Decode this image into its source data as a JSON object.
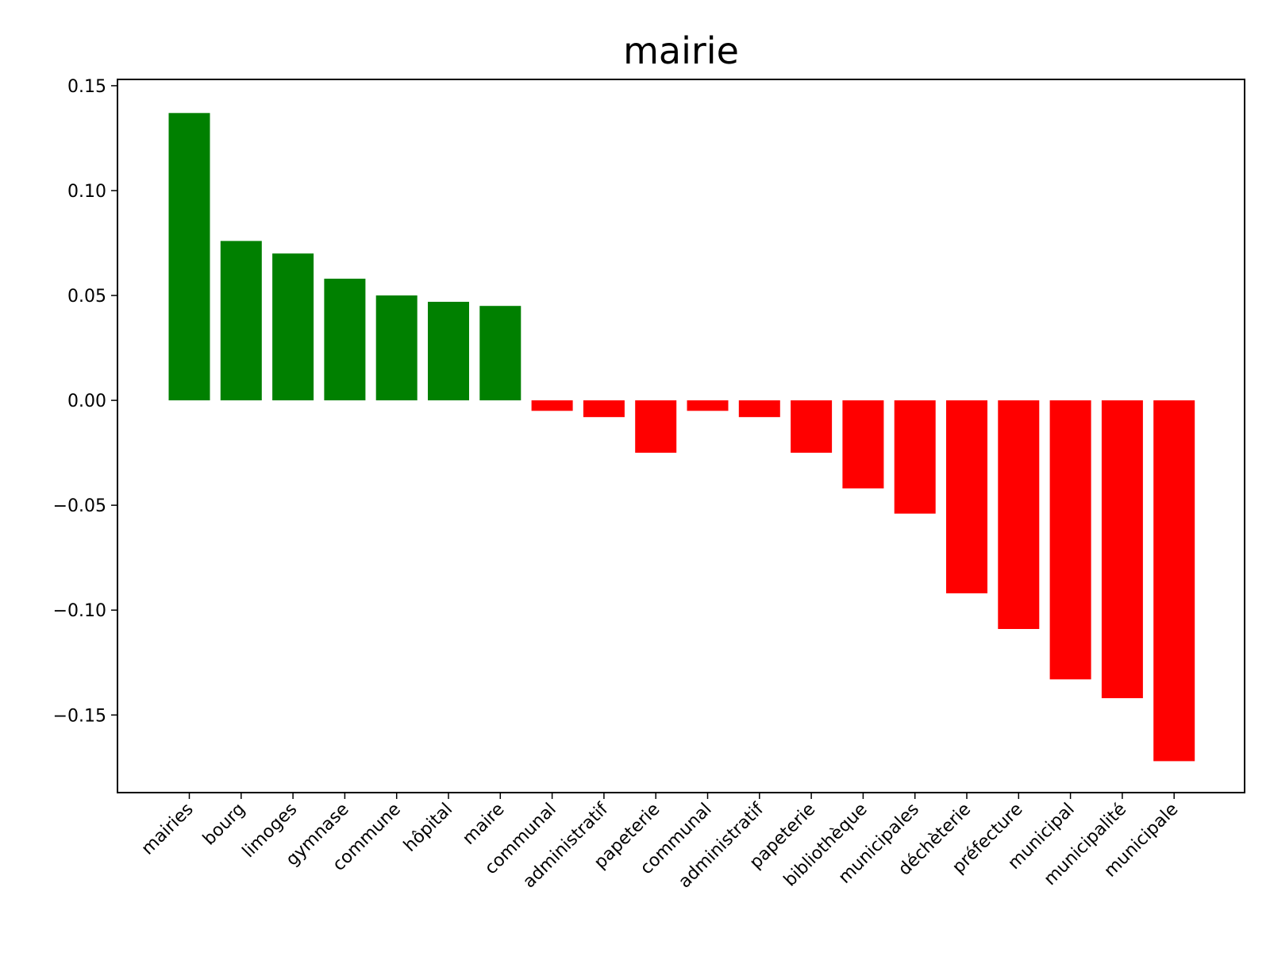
{
  "chart_data": {
    "type": "bar",
    "title": "mairie",
    "xlabel": "",
    "ylabel": "",
    "categories": [
      "mairies",
      "bourg",
      "limoges",
      "gymnase",
      "commune",
      "hôpital",
      "maire",
      "communal",
      "administratif",
      "papeterie",
      "communal",
      "administratif",
      "papeterie",
      "bibliothèque",
      "municipales",
      "déchèterie",
      "préfecture",
      "municipal",
      "municipalité",
      "municipale"
    ],
    "values": [
      0.137,
      0.076,
      0.07,
      0.058,
      0.05,
      0.047,
      0.045,
      -0.005,
      -0.008,
      -0.025,
      -0.005,
      -0.008,
      -0.025,
      -0.042,
      -0.054,
      -0.092,
      -0.109,
      -0.133,
      -0.142,
      -0.172
    ],
    "ylim": [
      -0.187,
      0.153
    ],
    "yticks": [
      0.15,
      0.1,
      0.05,
      0.0,
      -0.05,
      -0.1,
      -0.15
    ],
    "ytick_labels": [
      "0.15",
      "0.10",
      "0.05",
      "0.00",
      "−0.05",
      "−0.10",
      "−0.15"
    ],
    "positive_color": "#008000",
    "negative_color": "#ff0000",
    "grid": false,
    "legend": "none"
  }
}
